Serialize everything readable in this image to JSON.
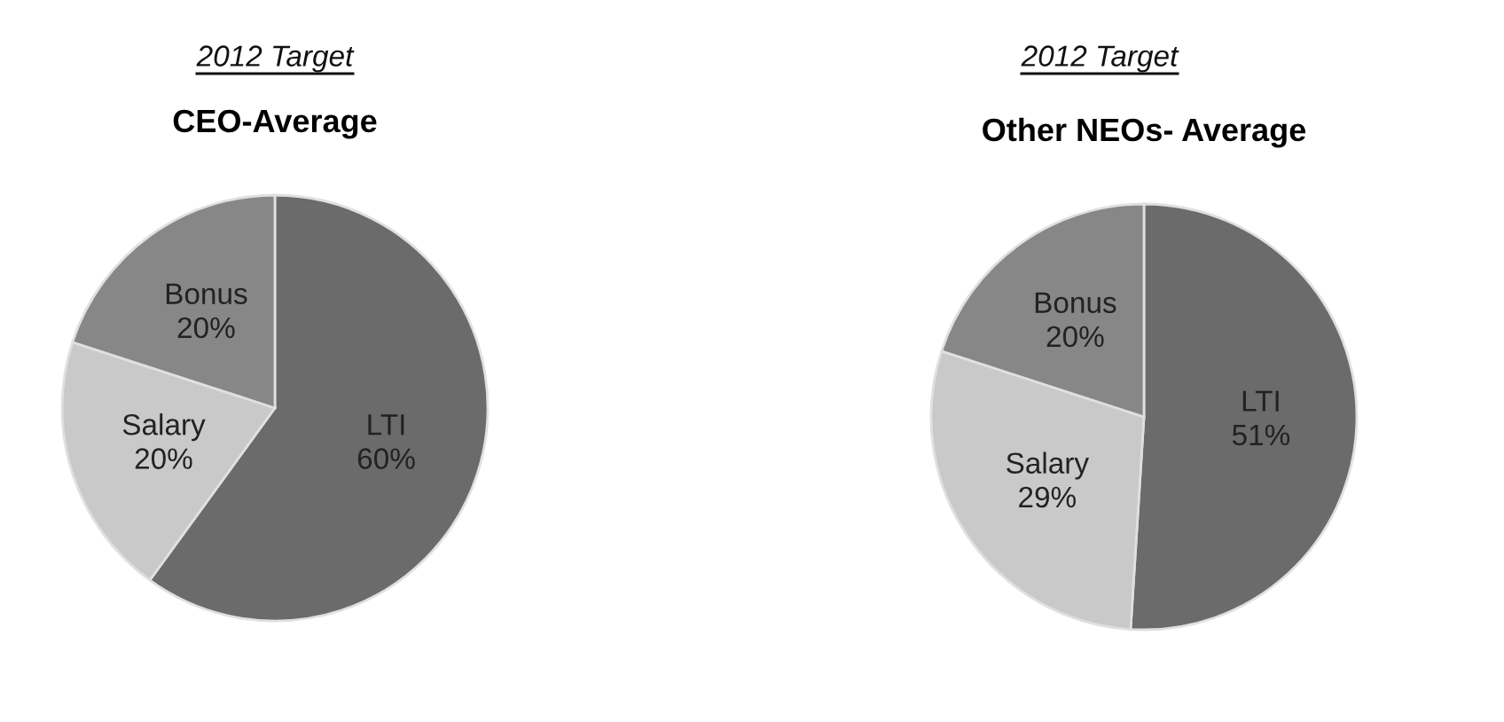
{
  "chart_data": [
    {
      "type": "pie",
      "title": "2012 Target",
      "subtitle": "CEO-Average",
      "categories": [
        "LTI",
        "Salary",
        "Bonus"
      ],
      "values": [
        60,
        20,
        20
      ],
      "value_labels": [
        "60%",
        "20%",
        "20%"
      ],
      "colors": [
        "#6b6b6b",
        "#c9c9c9",
        "#878787"
      ],
      "legend": false
    },
    {
      "type": "pie",
      "title": "2012 Target",
      "subtitle": "Other NEOs- Average",
      "categories": [
        "LTI",
        "Salary",
        "Bonus"
      ],
      "values": [
        51,
        29,
        20
      ],
      "value_labels": [
        "51%",
        "29%",
        "20%"
      ],
      "colors": [
        "#6b6b6b",
        "#c9c9c9",
        "#878787"
      ],
      "legend": false
    }
  ]
}
